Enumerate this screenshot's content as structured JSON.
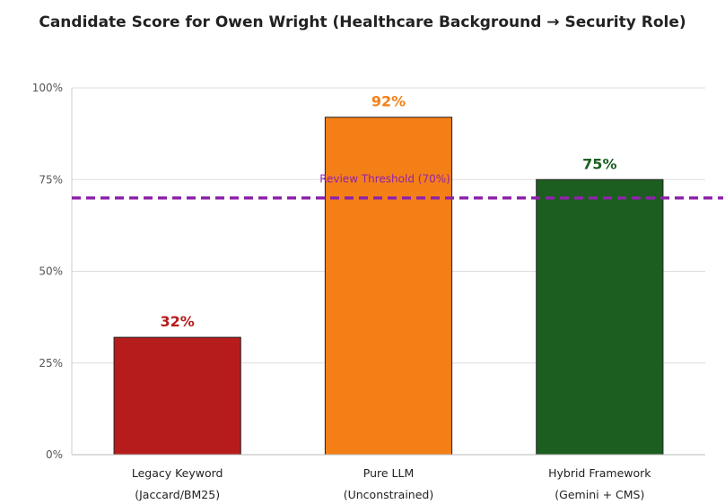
{
  "chart_data": {
    "type": "bar",
    "title": "Candidate Score for Owen Wright (Healthcare Background → Security Role)",
    "categories": [
      [
        "Legacy Keyword",
        "(Jaccard/BM25)"
      ],
      [
        "Pure LLM",
        "(Unconstrained)"
      ],
      [
        "Hybrid Framework",
        "(Gemini + CMS)"
      ]
    ],
    "values": [
      32,
      92,
      75
    ],
    "value_labels": [
      "32%",
      "92%",
      "75%"
    ],
    "colors": [
      "#b71c1c",
      "#f57f17",
      "#1b5e20"
    ],
    "ylim": [
      0,
      100
    ],
    "yticks": [
      0,
      25,
      50,
      75,
      100
    ],
    "ytick_labels": [
      "0%",
      "25%",
      "50%",
      "75%",
      "100%"
    ],
    "grid": true,
    "threshold": {
      "value": 70,
      "label": "Review Threshold (70%)",
      "color": "#8e24aa"
    }
  }
}
